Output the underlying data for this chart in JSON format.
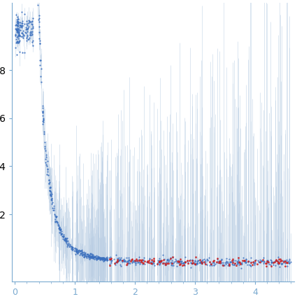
{
  "xlim": [
    -0.05,
    4.65
  ],
  "ylim": [
    -0.08,
    1.08
  ],
  "x_ticks": [
    0,
    1,
    2,
    3,
    4
  ],
  "blue_color": "#3a6fbe",
  "red_color": "#cc2222",
  "error_color": "#b8cde3",
  "background_color": "#ffffff",
  "axis_color": "#7aaad0",
  "tick_label_color": "#7aaad0",
  "seed": 7,
  "n_dense": 420,
  "n_near0": 60,
  "n_sparse": 480,
  "n_red": 130,
  "figsize": [
    4.25,
    4.37
  ],
  "dpi": 100
}
